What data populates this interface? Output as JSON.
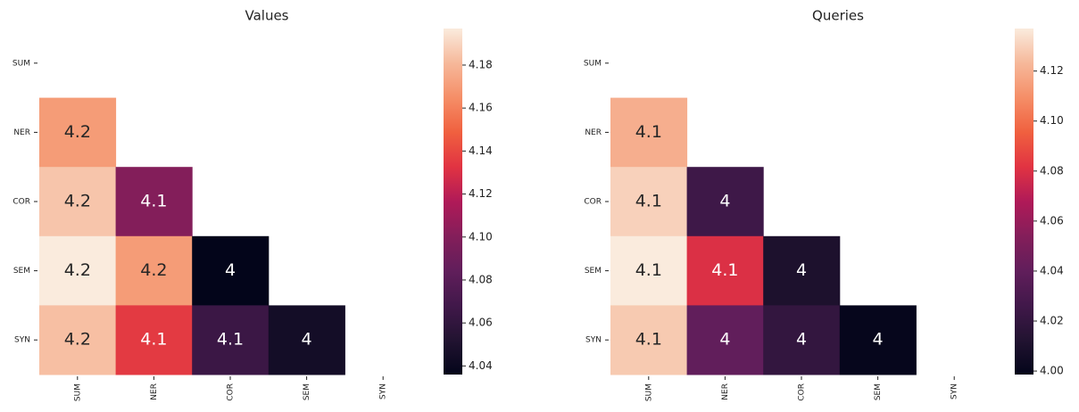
{
  "chart_data": [
    {
      "type": "heatmap",
      "title": "Values",
      "colormap": "rocket",
      "columns": [
        "SUM",
        "NER",
        "COR",
        "SEM",
        "SYN"
      ],
      "rows": [
        "SUM",
        "NER",
        "COR",
        "SEM",
        "SYN"
      ],
      "values": [
        [
          null,
          null,
          null,
          null,
          null
        ],
        [
          4.17,
          null,
          null,
          null,
          null
        ],
        [
          4.185,
          4.1,
          null,
          null,
          null
        ],
        [
          4.197,
          4.17,
          4.036,
          null,
          null
        ],
        [
          4.183,
          4.135,
          4.065,
          4.045,
          null
        ]
      ],
      "value_labels": [
        [
          null,
          null,
          null,
          null,
          null
        ],
        [
          "4.2",
          null,
          null,
          null,
          null
        ],
        [
          "4.2",
          "4.1",
          null,
          null,
          null
        ],
        [
          "4.2",
          "4.2",
          "4",
          null,
          null
        ],
        [
          "4.2",
          "4.1",
          "4.1",
          "4",
          null
        ]
      ],
      "clim": [
        4.036,
        4.197
      ],
      "cticks": [
        4.04,
        4.06,
        4.08,
        {
          "value": 4.1,
          "label": "4.10"
        },
        4.12,
        4.14,
        4.16,
        4.18
      ]
    },
    {
      "type": "heatmap",
      "title": "Queries",
      "colormap": "rocket",
      "columns": [
        "SUM",
        "NER",
        "COR",
        "SEM",
        "SYN"
      ],
      "rows": [
        "SUM",
        "NER",
        "COR",
        "SEM",
        "SYN"
      ],
      "values": [
        [
          null,
          null,
          null,
          null,
          null
        ],
        [
          4.12,
          null,
          null,
          null,
          null
        ],
        [
          4.13,
          4.025,
          null,
          null,
          null
        ],
        [
          4.137,
          4.08,
          4.01,
          null,
          null
        ],
        [
          4.128,
          4.04,
          4.02,
          4.0,
          null
        ]
      ],
      "value_labels": [
        [
          null,
          null,
          null,
          null,
          null
        ],
        [
          "4.1",
          null,
          null,
          null,
          null
        ],
        [
          "4.1",
          "4",
          null,
          null,
          null
        ],
        [
          "4.1",
          "4.1",
          "4",
          null,
          null
        ],
        [
          "4.1",
          "4",
          "4",
          "4",
          null
        ]
      ],
      "clim": [
        3.9986,
        4.137
      ],
      "cticks": [
        {
          "value": 4.0,
          "label": "4.00"
        },
        4.02,
        4.04,
        4.06,
        4.08,
        {
          "value": 4.1,
          "label": "4.10"
        },
        4.12
      ]
    }
  ]
}
